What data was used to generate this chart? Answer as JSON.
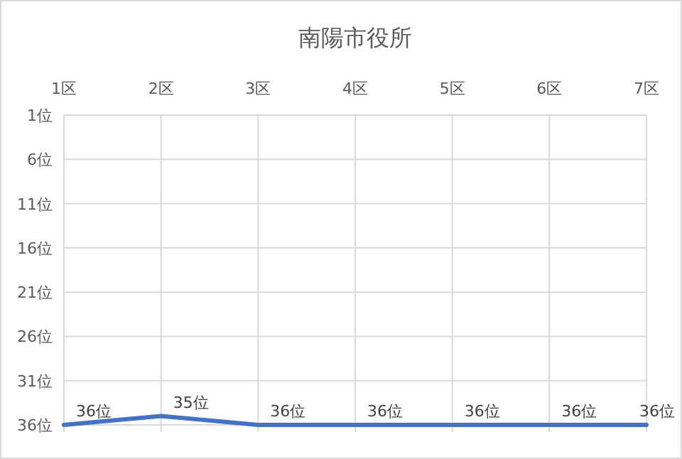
{
  "chart_data": {
    "type": "line",
    "title": "南陽市役所",
    "categories": [
      "1区",
      "2区",
      "3区",
      "4区",
      "5区",
      "6区",
      "7区"
    ],
    "series": [
      {
        "color": "#4472c4",
        "values": [
          36,
          35,
          36,
          36,
          36,
          36,
          36
        ],
        "value_labels": [
          "36位",
          "35位",
          "36位",
          "36位",
          "36位",
          "36位",
          "36位"
        ]
      }
    ],
    "ylim": [
      36,
      1
    ],
    "yticks": [
      {
        "value": 1,
        "label": "1位"
      },
      {
        "value": 6,
        "label": "6位"
      },
      {
        "value": 11,
        "label": "11位"
      },
      {
        "value": 16,
        "label": "16位"
      },
      {
        "value": 21,
        "label": "21位"
      },
      {
        "value": 26,
        "label": "26位"
      },
      {
        "value": 31,
        "label": "31位"
      },
      {
        "value": 36,
        "label": "36位"
      }
    ],
    "grid": true,
    "marker": "none",
    "line_style": "solid"
  }
}
